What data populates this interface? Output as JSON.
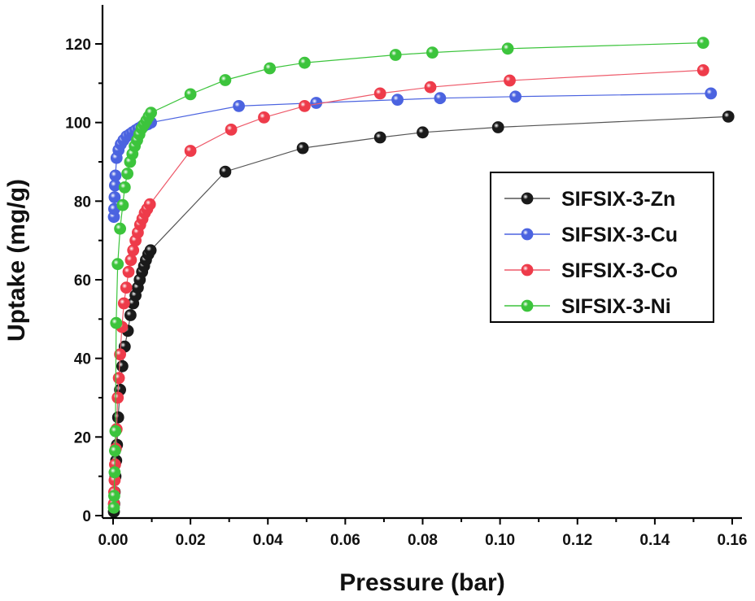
{
  "chart_data": {
    "type": "line",
    "title": "",
    "xlabel": "Pressure (bar)",
    "ylabel": "Uptake (mg/g)",
    "xlim": [
      -0.001,
      0.162
    ],
    "ylim": [
      0,
      130
    ],
    "x_ticks": [
      "0.00",
      "0.02",
      "0.04",
      "0.06",
      "0.08",
      "0.10",
      "0.12",
      "0.14",
      "0.16"
    ],
    "y_ticks": [
      "0",
      "20",
      "40",
      "60",
      "80",
      "100",
      "120"
    ],
    "x_tick_values": [
      0,
      0.02,
      0.04,
      0.06,
      0.08,
      0.1,
      0.12,
      0.14,
      0.16
    ],
    "y_tick_values": [
      0,
      20,
      40,
      60,
      80,
      100,
      120
    ],
    "grid": false,
    "legend_position": "right-middle",
    "series": [
      {
        "name": "SIFSIX-3-Zn",
        "color": "#1a1a1a",
        "line_color": "#555555",
        "points": [
          [
            0.0002,
            1
          ],
          [
            0.0003,
            3
          ],
          [
            0.0004,
            6
          ],
          [
            0.0006,
            10
          ],
          [
            0.0008,
            14
          ],
          [
            0.001,
            18
          ],
          [
            0.0013,
            25
          ],
          [
            0.0018,
            32
          ],
          [
            0.0024,
            38
          ],
          [
            0.003,
            43
          ],
          [
            0.0038,
            47
          ],
          [
            0.0045,
            51
          ],
          [
            0.0052,
            54
          ],
          [
            0.0058,
            56
          ],
          [
            0.0064,
            58
          ],
          [
            0.0069,
            60
          ],
          [
            0.0075,
            62
          ],
          [
            0.008,
            63.5
          ],
          [
            0.0085,
            65
          ],
          [
            0.0091,
            66.5
          ],
          [
            0.0097,
            67.5
          ],
          [
            0.029,
            87.5
          ],
          [
            0.049,
            93.5
          ],
          [
            0.069,
            96.2
          ],
          [
            0.08,
            97.5
          ],
          [
            0.0995,
            98.8
          ],
          [
            0.159,
            101.5
          ]
        ]
      },
      {
        "name": "SIFSIX-3-Cu",
        "color": "#4b63e0",
        "line_color": "#4b63e0",
        "points": [
          [
            0.0002,
            76
          ],
          [
            0.0003,
            78
          ],
          [
            0.0004,
            81
          ],
          [
            0.0005,
            84
          ],
          [
            0.0006,
            86.5
          ],
          [
            0.0009,
            91
          ],
          [
            0.0014,
            93
          ],
          [
            0.002,
            94.5
          ],
          [
            0.0027,
            95.5
          ],
          [
            0.0035,
            96.5
          ],
          [
            0.0043,
            97
          ],
          [
            0.005,
            97.5
          ],
          [
            0.0058,
            98
          ],
          [
            0.0066,
            98.5
          ],
          [
            0.0074,
            99
          ],
          [
            0.0082,
            99.3
          ],
          [
            0.009,
            99.6
          ],
          [
            0.0098,
            100
          ],
          [
            0.0325,
            104.2
          ],
          [
            0.0525,
            105
          ],
          [
            0.0735,
            105.8
          ],
          [
            0.0845,
            106.2
          ],
          [
            0.104,
            106.6
          ],
          [
            0.1545,
            107.4
          ]
        ]
      },
      {
        "name": "SIFSIX-3-Co",
        "color": "#ee3b4a",
        "line_color": "#ee5a6a",
        "points": [
          [
            0.0002,
            3
          ],
          [
            0.0003,
            6
          ],
          [
            0.0004,
            9
          ],
          [
            0.0005,
            13
          ],
          [
            0.0007,
            17
          ],
          [
            0.0009,
            22
          ],
          [
            0.0012,
            30
          ],
          [
            0.0015,
            35
          ],
          [
            0.0018,
            41
          ],
          [
            0.0023,
            48
          ],
          [
            0.0028,
            54
          ],
          [
            0.0034,
            58
          ],
          [
            0.004,
            62
          ],
          [
            0.0046,
            65
          ],
          [
            0.0052,
            67.5
          ],
          [
            0.0058,
            70
          ],
          [
            0.0064,
            72
          ],
          [
            0.007,
            74
          ],
          [
            0.0076,
            75.5
          ],
          [
            0.0082,
            77
          ],
          [
            0.0088,
            78
          ],
          [
            0.0095,
            79.2
          ],
          [
            0.02,
            92.8
          ],
          [
            0.0305,
            98.2
          ],
          [
            0.039,
            101.3
          ],
          [
            0.0495,
            104.2
          ],
          [
            0.069,
            107.4
          ],
          [
            0.082,
            109
          ],
          [
            0.1025,
            110.7
          ],
          [
            0.1525,
            113.3
          ]
        ]
      },
      {
        "name": "SIFSIX-3-Ni",
        "color": "#3cc43c",
        "line_color": "#3cc43c",
        "points": [
          [
            0.0002,
            2
          ],
          [
            0.0003,
            5
          ],
          [
            0.0004,
            11
          ],
          [
            0.0005,
            16.5
          ],
          [
            0.0006,
            21.5
          ],
          [
            0.0008,
            49
          ],
          [
            0.0012,
            64
          ],
          [
            0.0018,
            73
          ],
          [
            0.0025,
            79
          ],
          [
            0.003,
            83.5
          ],
          [
            0.0037,
            87
          ],
          [
            0.0044,
            90
          ],
          [
            0.005,
            92
          ],
          [
            0.0056,
            94
          ],
          [
            0.0062,
            95.5
          ],
          [
            0.0068,
            97
          ],
          [
            0.0074,
            98.5
          ],
          [
            0.008,
            99.5
          ],
          [
            0.0086,
            100.5
          ],
          [
            0.0092,
            101.5
          ],
          [
            0.0098,
            102.5
          ],
          [
            0.02,
            107.2
          ],
          [
            0.029,
            110.8
          ],
          [
            0.0405,
            113.8
          ],
          [
            0.0495,
            115.2
          ],
          [
            0.073,
            117.2
          ],
          [
            0.0825,
            117.8
          ],
          [
            0.102,
            118.8
          ],
          [
            0.1525,
            120.3
          ]
        ]
      }
    ]
  }
}
